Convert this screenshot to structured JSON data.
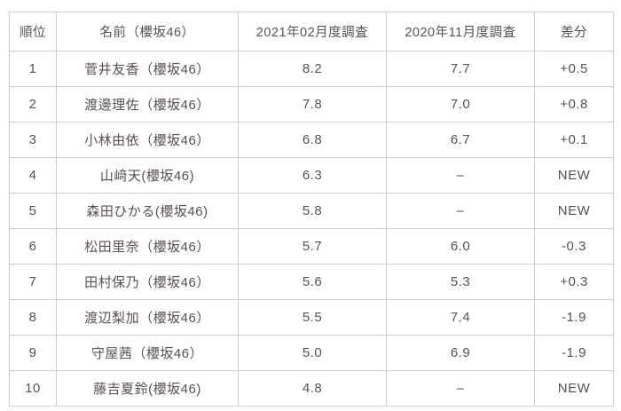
{
  "chart_data": {
    "type": "table",
    "title": "",
    "columns": [
      "順位",
      "名前（櫻坂46）",
      "2021年02月度調査",
      "2020年11月度調査",
      "差分"
    ],
    "rows": [
      [
        "1",
        "菅井友香（櫻坂46）",
        "8.2",
        "7.7",
        "+0.5"
      ],
      [
        "2",
        "渡邊理佐（櫻坂46）",
        "7.8",
        "7.0",
        "+0.8"
      ],
      [
        "3",
        "小林由依（櫻坂46）",
        "6.8",
        "6.7",
        "+0.1"
      ],
      [
        "4",
        "山﨑天(櫻坂46)",
        "6.3",
        "–",
        "NEW"
      ],
      [
        "5",
        "森田ひかる(櫻坂46)",
        "5.8",
        "–",
        "NEW"
      ],
      [
        "6",
        "松田里奈（櫻坂46）",
        "5.7",
        "6.0",
        "-0.3"
      ],
      [
        "7",
        "田村保乃（櫻坂46）",
        "5.6",
        "5.3",
        "+0.3"
      ],
      [
        "8",
        "渡辺梨加（櫻坂46）",
        "5.5",
        "7.4",
        "-1.9"
      ],
      [
        "9",
        "守屋茜（櫻坂46）",
        "5.0",
        "6.9",
        "-1.9"
      ],
      [
        "10",
        "藤吉夏鈴(櫻坂46)",
        "4.8",
        "–",
        "NEW"
      ]
    ],
    "layout": {
      "grid": true,
      "header_row": true,
      "cell_alignment": "center"
    }
  },
  "colors": {
    "background": "#ffffff",
    "border": "#cccccc",
    "text": "#595150"
  }
}
